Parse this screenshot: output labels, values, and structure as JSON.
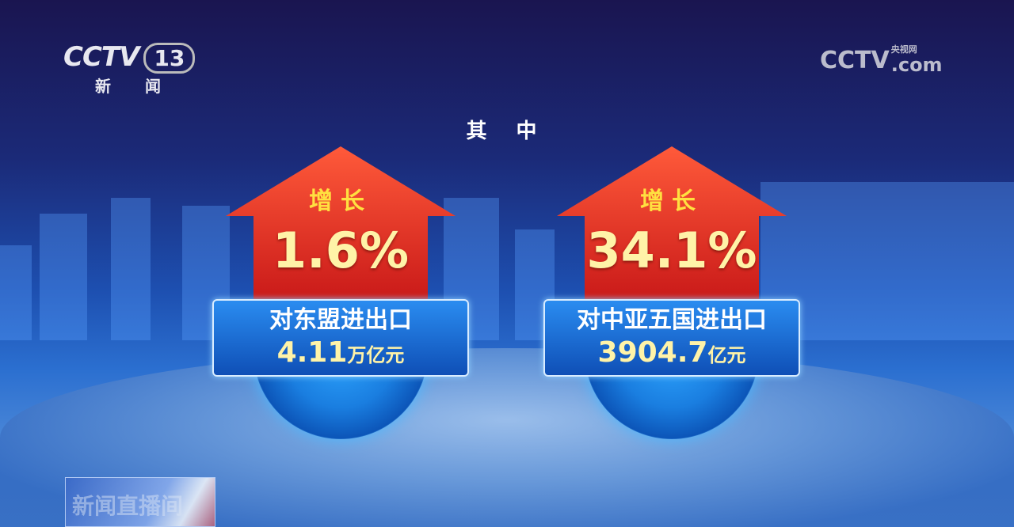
{
  "channel_logo": {
    "brand": "CCTV",
    "number": "13",
    "name": "新 闻"
  },
  "watermark": {
    "brand": "CCTV",
    "site_cn": "央视网",
    "site": ".com"
  },
  "heading": "其 中",
  "cards": [
    {
      "direction": "增长",
      "percent": "1.6%",
      "label": "对东盟进出口",
      "value": "4.11",
      "unit": "万亿元"
    },
    {
      "direction": "增长",
      "percent": "34.1%",
      "label": "对中亚五国进出口",
      "value": "3904.7",
      "unit": "亿元"
    }
  ],
  "program_bug": "新闻直播间",
  "colors": {
    "arrow": "#e8382a",
    "highlight": "#ffe040",
    "box": "#1a6ee0"
  }
}
